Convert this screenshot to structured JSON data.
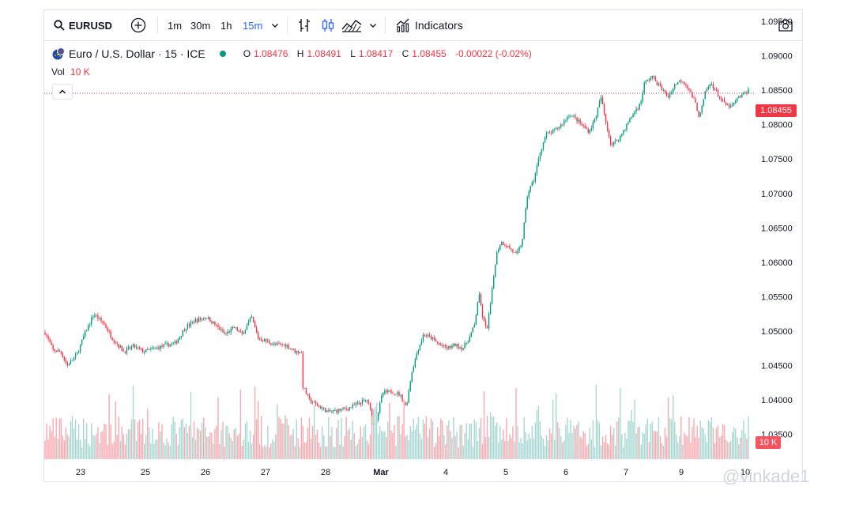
{
  "toolbar": {
    "symbol": "EURUSD",
    "intervals": [
      "1m",
      "30m",
      "1h",
      "15m"
    ],
    "active_interval": "15m",
    "indicators_label": "Indicators"
  },
  "legend": {
    "title": "Euro / U.S. Dollar · 15 · ICE",
    "o_label": "O",
    "o": "1.08476",
    "h_label": "H",
    "h": "1.08491",
    "l_label": "L",
    "l": "1.08417",
    "c_label": "C",
    "c": "1.08455",
    "change": "-0.00022 (-0.02%)",
    "vol_label": "Vol",
    "vol_value": "10 K"
  },
  "colors": {
    "up": "#089981",
    "down": "#f23645",
    "vol_up": "#a9d8d2",
    "vol_down": "#f8aab0",
    "accent": "#2962ff"
  },
  "price_badge": "1.08455",
  "volume_badge": "10 K",
  "watermark": "@vinkade1",
  "chart_data": {
    "type": "candlestick",
    "symbol": "EURUSD",
    "interval": "15",
    "y_axis_ticks": [
      "1.09500",
      "1.09000",
      "1.08500",
      "1.08000",
      "1.07500",
      "1.07000",
      "1.06500",
      "1.06000",
      "1.05500",
      "1.05000",
      "1.04500",
      "1.04000",
      "1.03500"
    ],
    "ylim": [
      1.0315,
      1.0965
    ],
    "x_axis_ticks": [
      "23",
      "25",
      "26",
      "27",
      "28",
      "Mar",
      "4",
      "5",
      "6",
      "7",
      "9",
      "10"
    ],
    "last_price": 1.08455,
    "approx_close_path": [
      [
        0,
        1.0498
      ],
      [
        10,
        1.0472
      ],
      [
        20,
        1.047
      ],
      [
        28,
        1.045
      ],
      [
        40,
        1.0465
      ],
      [
        50,
        1.0495
      ],
      [
        62,
        1.0525
      ],
      [
        75,
        1.051
      ],
      [
        85,
        1.049
      ],
      [
        100,
        1.047
      ],
      [
        112,
        1.0478
      ],
      [
        125,
        1.047
      ],
      [
        140,
        1.0475
      ],
      [
        155,
        1.048
      ],
      [
        165,
        1.0482
      ],
      [
        178,
        1.0505
      ],
      [
        190,
        1.0515
      ],
      [
        205,
        1.052
      ],
      [
        215,
        1.051
      ],
      [
        228,
        1.0495
      ],
      [
        240,
        1.0505
      ],
      [
        250,
        1.0495
      ],
      [
        262,
        1.052
      ],
      [
        270,
        1.049
      ],
      [
        282,
        1.0485
      ],
      [
        292,
        1.048
      ],
      [
        305,
        1.048
      ],
      [
        318,
        1.047
      ],
      [
        325,
        1.047
      ],
      [
        327,
        1.042
      ],
      [
        335,
        1.04
      ],
      [
        345,
        1.0392
      ],
      [
        360,
        1.0382
      ],
      [
        372,
        1.0385
      ],
      [
        385,
        1.0388
      ],
      [
        398,
        1.0395
      ],
      [
        408,
        1.04
      ],
      [
        412,
        1.039
      ],
      [
        415,
        1.0362
      ],
      [
        420,
        1.037
      ],
      [
        428,
        1.041
      ],
      [
        440,
        1.0412
      ],
      [
        450,
        1.0408
      ],
      [
        458,
        1.039
      ],
      [
        465,
        1.044
      ],
      [
        472,
        1.047
      ],
      [
        480,
        1.0495
      ],
      [
        490,
        1.049
      ],
      [
        500,
        1.048
      ],
      [
        510,
        1.0475
      ],
      [
        520,
        1.048
      ],
      [
        530,
        1.0475
      ],
      [
        538,
        1.049
      ],
      [
        545,
        1.051
      ],
      [
        550,
        1.0555
      ],
      [
        555,
        1.052
      ],
      [
        560,
        1.05
      ],
      [
        565,
        1.054
      ],
      [
        572,
        1.061
      ],
      [
        578,
        1.063
      ],
      [
        590,
        1.062
      ],
      [
        598,
        1.061
      ],
      [
        605,
        1.063
      ],
      [
        612,
        1.07
      ],
      [
        620,
        1.072
      ],
      [
        628,
        1.076
      ],
      [
        635,
        1.0785
      ],
      [
        645,
        1.079
      ],
      [
        655,
        1.08
      ],
      [
        665,
        1.0815
      ],
      [
        672,
        1.081
      ],
      [
        680,
        1.08
      ],
      [
        690,
        1.079
      ],
      [
        698,
        1.081
      ],
      [
        705,
        1.084
      ],
      [
        710,
        1.081
      ],
      [
        718,
        1.077
      ],
      [
        728,
        1.078
      ],
      [
        738,
        1.08
      ],
      [
        748,
        1.082
      ],
      [
        755,
        1.083
      ],
      [
        760,
        1.086
      ],
      [
        770,
        1.087
      ],
      [
        780,
        1.0855
      ],
      [
        790,
        1.084
      ],
      [
        800,
        1.086
      ],
      [
        808,
        1.0865
      ],
      [
        815,
        1.0855
      ],
      [
        825,
        1.083
      ],
      [
        830,
        1.081
      ],
      [
        838,
        1.085
      ],
      [
        845,
        1.086
      ],
      [
        855,
        1.084
      ],
      [
        862,
        1.083
      ],
      [
        870,
        1.0825
      ],
      [
        880,
        1.084
      ],
      [
        887,
        1.0845
      ],
      [
        892,
        1.085
      ]
    ]
  }
}
